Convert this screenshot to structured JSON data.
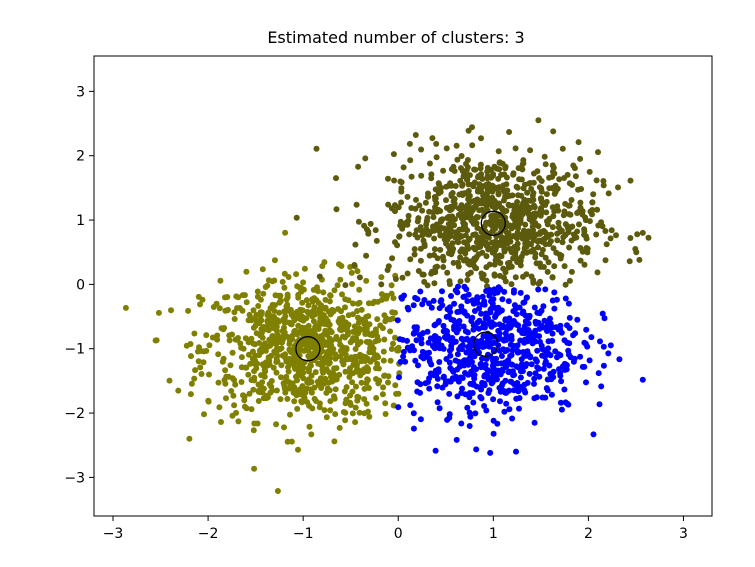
{
  "chart_data": {
    "type": "scatter",
    "title": "Estimated number of clusters: 3",
    "xlabel": "",
    "ylabel": "",
    "xlim": [
      -3.2,
      3.3
    ],
    "ylim": [
      -3.6,
      3.55
    ],
    "x_ticks": [
      -3,
      -2,
      -1,
      0,
      1,
      2,
      3
    ],
    "y_ticks": [
      -3,
      -2,
      -1,
      0,
      1,
      2,
      3
    ],
    "x_tick_labels": [
      "−3",
      "−2",
      "−1",
      "0",
      "1",
      "2",
      "3"
    ],
    "y_tick_labels": [
      "−3",
      "−2",
      "−1",
      "0",
      "1",
      "2",
      "3"
    ],
    "grid": false,
    "clusters": [
      {
        "color": "#808000",
        "center": [
          -0.95,
          -1.0
        ],
        "spread": [
          0.55,
          0.55
        ],
        "count": 900,
        "region": "x_lt_0"
      },
      {
        "color": "#5c5a0c",
        "center": [
          1.0,
          0.95
        ],
        "spread": [
          0.55,
          0.55
        ],
        "count": 900,
        "region": "y_gt_0"
      },
      {
        "color": "#0000ff",
        "center": [
          0.92,
          -0.93
        ],
        "spread": [
          0.5,
          0.55
        ],
        "count": 700,
        "region": "x_gt_0_y_lt_0"
      }
    ],
    "centroids": [
      {
        "x": -0.95,
        "y": -1.0
      },
      {
        "x": 1.0,
        "y": 0.95
      },
      {
        "x": 0.92,
        "y": -0.93
      }
    ]
  }
}
